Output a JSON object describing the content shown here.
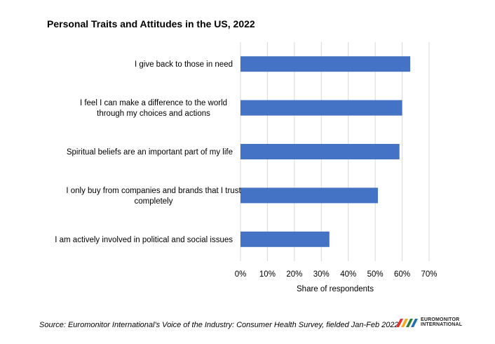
{
  "chart_data": {
    "type": "bar",
    "orientation": "horizontal",
    "title": "Personal Traits and Attitudes in the US, 2022",
    "xlabel": "Share of respondents",
    "ylabel": "",
    "xlim": [
      0,
      70
    ],
    "x_ticks": [
      "0%",
      "10%",
      "20%",
      "30%",
      "40%",
      "50%",
      "60%",
      "70%"
    ],
    "grid": true,
    "bar_color": "#4472c4",
    "categories": [
      [
        "I give back to those in need"
      ],
      [
        "I feel I can make a difference to the world",
        "through my choices and actions"
      ],
      [
        "Spiritual beliefs are an important part of my life"
      ],
      [
        "I only buy from companies and brands that I trust",
        "completely"
      ],
      [
        "I am actively involved in political and social issues"
      ]
    ],
    "values": [
      63,
      60,
      59,
      51,
      33
    ]
  },
  "source": "Source: Euromonitor International's Voice of the Industry: Consumer Health Survey, fielded Jan-Feb 2022",
  "logo": {
    "line1": "EUROMONITOR",
    "line2": "INTERNATIONAL",
    "icon": "euromonitor-logo-icon",
    "colors": [
      "#e4322b",
      "#f7a823",
      "#2f7d32",
      "#1f6fb5"
    ]
  }
}
